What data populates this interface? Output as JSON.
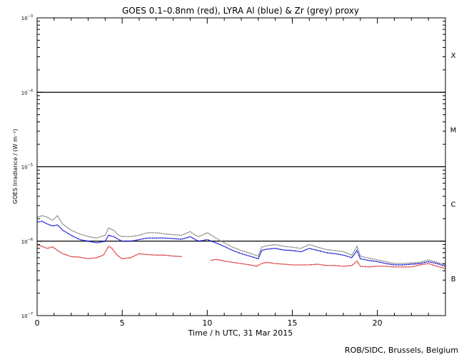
{
  "chart_data": {
    "type": "line",
    "title": "GOES 0.1–0.8nm (red), LYRA Al (blue) & Zr (grey) proxy",
    "xlabel": "Time / h UTC, 31 Mar 2015",
    "ylabel": "GOES Irradiance / (W m⁻²)",
    "credit": "ROB/SIDC, Brussels, Belgium",
    "xlim": [
      0,
      24
    ],
    "ylim": [
      1e-07,
      0.001
    ],
    "yscale": "log",
    "x_ticks": [
      0,
      5,
      10,
      15,
      20
    ],
    "x_tick_labels": [
      "0",
      "5",
      "10",
      "15",
      "20"
    ],
    "y_ticks": [
      {
        "value": 1e-07,
        "base": "10",
        "exp": "−7"
      },
      {
        "value": 1e-06,
        "base": "10",
        "exp": "−6"
      },
      {
        "value": 1e-05,
        "base": "10",
        "exp": "−5"
      },
      {
        "value": 0.0001,
        "base": "10",
        "exp": "−4"
      },
      {
        "value": 0.001,
        "base": "10",
        "exp": "−3"
      }
    ],
    "class_lines": [
      1e-06,
      1e-05,
      0.0001
    ],
    "flare_classes": [
      {
        "label": "X",
        "value": 0.000316
      },
      {
        "label": "M",
        "value": 3.16e-05
      },
      {
        "label": "C",
        "value": 3.16e-06
      },
      {
        "label": "B",
        "value": 3.16e-07
      }
    ],
    "series": [
      {
        "color": "#d00000",
        "x": [
          0,
          0.3,
          0.6,
          0.9,
          1.2,
          1.5,
          2.0,
          2.5,
          3.0,
          3.5,
          3.9,
          4.2,
          4.4,
          4.7,
          5.0,
          5.5,
          6.0,
          6.5,
          7.0,
          7.5,
          8.0,
          8.5,
          10.2,
          10.5,
          11.0,
          11.5,
          12.0,
          12.5,
          12.9,
          13.2,
          13.5,
          14.0,
          14.5,
          15.0,
          15.5,
          16.0,
          16.5,
          17.0,
          17.5,
          18.0,
          18.5,
          18.8,
          19.0,
          19.5,
          20.0,
          20.5,
          21.0,
          21.5,
          22.0,
          22.5,
          23.0,
          23.5,
          24.0
        ],
        "y": [
          9e-07,
          8.5e-07,
          8e-07,
          8.4e-07,
          7.5e-07,
          6.8e-07,
          6.2e-07,
          6.1e-07,
          5.8e-07,
          6e-07,
          6.5e-07,
          8.5e-07,
          8e-07,
          6.5e-07,
          5.8e-07,
          6e-07,
          6.8e-07,
          6.6e-07,
          6.5e-07,
          6.5e-07,
          6.3e-07,
          6.2e-07,
          5.5e-07,
          5.7e-07,
          5.4e-07,
          5.2e-07,
          5e-07,
          4.8e-07,
          4.6e-07,
          5e-07,
          5.2e-07,
          5e-07,
          4.9e-07,
          4.8e-07,
          4.8e-07,
          4.8e-07,
          4.9e-07,
          4.7e-07,
          4.7e-07,
          4.6e-07,
          4.7e-07,
          5.4e-07,
          4.6e-07,
          4.5e-07,
          4.6e-07,
          4.6e-07,
          4.5e-07,
          4.5e-07,
          4.5e-07,
          4.8e-07,
          5e-07,
          4.6e-07,
          4.3e-07
        ]
      },
      {
        "color": "#0000d0",
        "x": [
          0,
          0.3,
          0.6,
          0.9,
          1.2,
          1.5,
          2.0,
          2.5,
          3.0,
          3.5,
          4.0,
          4.2,
          4.5,
          4.8,
          5.0,
          5.5,
          6.0,
          6.5,
          7.0,
          7.5,
          8.0,
          8.5,
          9.0,
          9.3,
          9.5,
          10.0,
          10.5,
          11.0,
          11.5,
          12.0,
          12.5,
          13.0,
          13.2,
          13.5,
          14.0,
          14.5,
          15.0,
          15.5,
          16.0,
          16.5,
          17.0,
          17.5,
          18.0,
          18.5,
          18.8,
          19.0,
          19.5,
          20.0,
          20.5,
          21.0,
          21.5,
          22.0,
          22.5,
          23.0,
          23.5,
          24.0
        ],
        "y": [
          1.8e-06,
          1.85e-06,
          1.7e-06,
          1.6e-06,
          1.65e-06,
          1.4e-06,
          1.2e-06,
          1.05e-06,
          1e-06,
          9.5e-07,
          1e-06,
          1.2e-06,
          1.15e-06,
          1.05e-06,
          1e-06,
          1e-06,
          1.05e-06,
          1.1e-06,
          1.1e-06,
          1.1e-06,
          1.08e-06,
          1.06e-06,
          1.15e-06,
          1.05e-06,
          1e-06,
          1.05e-06,
          9.5e-07,
          8.5e-07,
          7.5e-07,
          6.8e-07,
          6.3e-07,
          5.8e-07,
          7.5e-07,
          7.8e-07,
          8e-07,
          7.6e-07,
          7.5e-07,
          7.2e-07,
          8e-07,
          7.5e-07,
          7e-07,
          6.8e-07,
          6.5e-07,
          6e-07,
          7.5e-07,
          5.8e-07,
          5.5e-07,
          5.3e-07,
          5e-07,
          4.8e-07,
          4.8e-07,
          4.9e-07,
          5e-07,
          5.3e-07,
          5e-07,
          4.6e-07
        ]
      },
      {
        "color": "#808080",
        "x": [
          0,
          0.3,
          0.6,
          0.9,
          1.2,
          1.5,
          2.0,
          2.5,
          3.0,
          3.5,
          4.0,
          4.2,
          4.5,
          4.8,
          5.0,
          5.5,
          6.0,
          6.5,
          7.0,
          7.5,
          8.0,
          8.5,
          9.0,
          9.3,
          9.5,
          10.0,
          10.5,
          11.0,
          11.5,
          12.0,
          12.5,
          13.0,
          13.2,
          13.5,
          14.0,
          14.5,
          15.0,
          15.5,
          16.0,
          16.5,
          17.0,
          17.5,
          18.0,
          18.5,
          18.8,
          19.0,
          19.5,
          20.0,
          20.5,
          21.0,
          21.5,
          22.0,
          22.5,
          23.0,
          23.5,
          24.0
        ],
        "y": [
          2.1e-06,
          2.2e-06,
          2.1e-06,
          1.9e-06,
          2.2e-06,
          1.7e-06,
          1.4e-06,
          1.25e-06,
          1.15e-06,
          1.1e-06,
          1.2e-06,
          1.5e-06,
          1.4e-06,
          1.2e-06,
          1.15e-06,
          1.15e-06,
          1.2e-06,
          1.3e-06,
          1.3e-06,
          1.25e-06,
          1.22e-06,
          1.2e-06,
          1.35e-06,
          1.2e-06,
          1.15e-06,
          1.3e-06,
          1.1e-06,
          9.5e-07,
          8.3e-07,
          7.5e-07,
          6.9e-07,
          6.3e-07,
          8.3e-07,
          8.7e-07,
          9e-07,
          8.5e-07,
          8.3e-07,
          8e-07,
          9e-07,
          8.3e-07,
          7.7e-07,
          7.5e-07,
          7.2e-07,
          6.5e-07,
          8.5e-07,
          6.3e-07,
          5.9e-07,
          5.6e-07,
          5.3e-07,
          5e-07,
          5e-07,
          5.1e-07,
          5.2e-07,
          5.6e-07,
          5.2e-07,
          4.8e-07
        ]
      }
    ]
  }
}
